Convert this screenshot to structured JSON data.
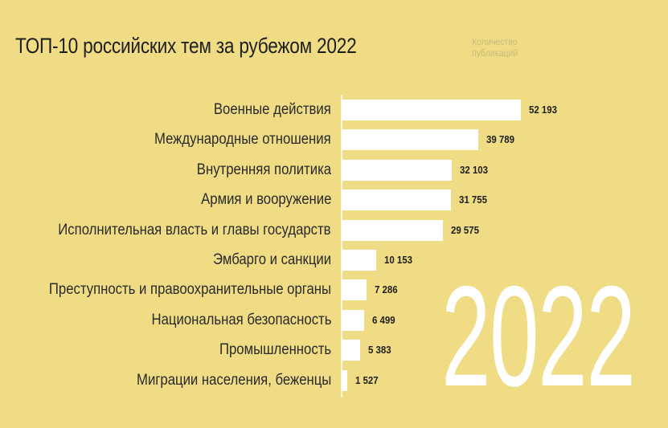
{
  "chart_data": {
    "type": "bar",
    "orientation": "horizontal",
    "title": "ТОП-10 российских тем за рубежом 2022",
    "value_label": "Количество публикаций",
    "decoration_text": "2022",
    "categories": [
      "Военные действия",
      "Международные отношения",
      "Внутренняя политика",
      "Армия и вооружение",
      "Исполнительная власть и главы государств",
      "Эмбарго и санкции",
      "Преступность и правоохранительные органы",
      "Национальная безопасность",
      "Промышленность",
      "Миграции населения, беженцы"
    ],
    "values": [
      52193,
      39789,
      32103,
      31755,
      29575,
      10153,
      7286,
      6499,
      5383,
      1527
    ],
    "value_labels": [
      "52 193",
      "39 789",
      "32 103",
      "31 755",
      "29 575",
      "10 153",
      "7 286",
      "6 499",
      "5 383",
      "1 527"
    ],
    "colors": {
      "background": "#efdc84",
      "bar": "#ffffff",
      "text": "#1f1f1f"
    }
  }
}
